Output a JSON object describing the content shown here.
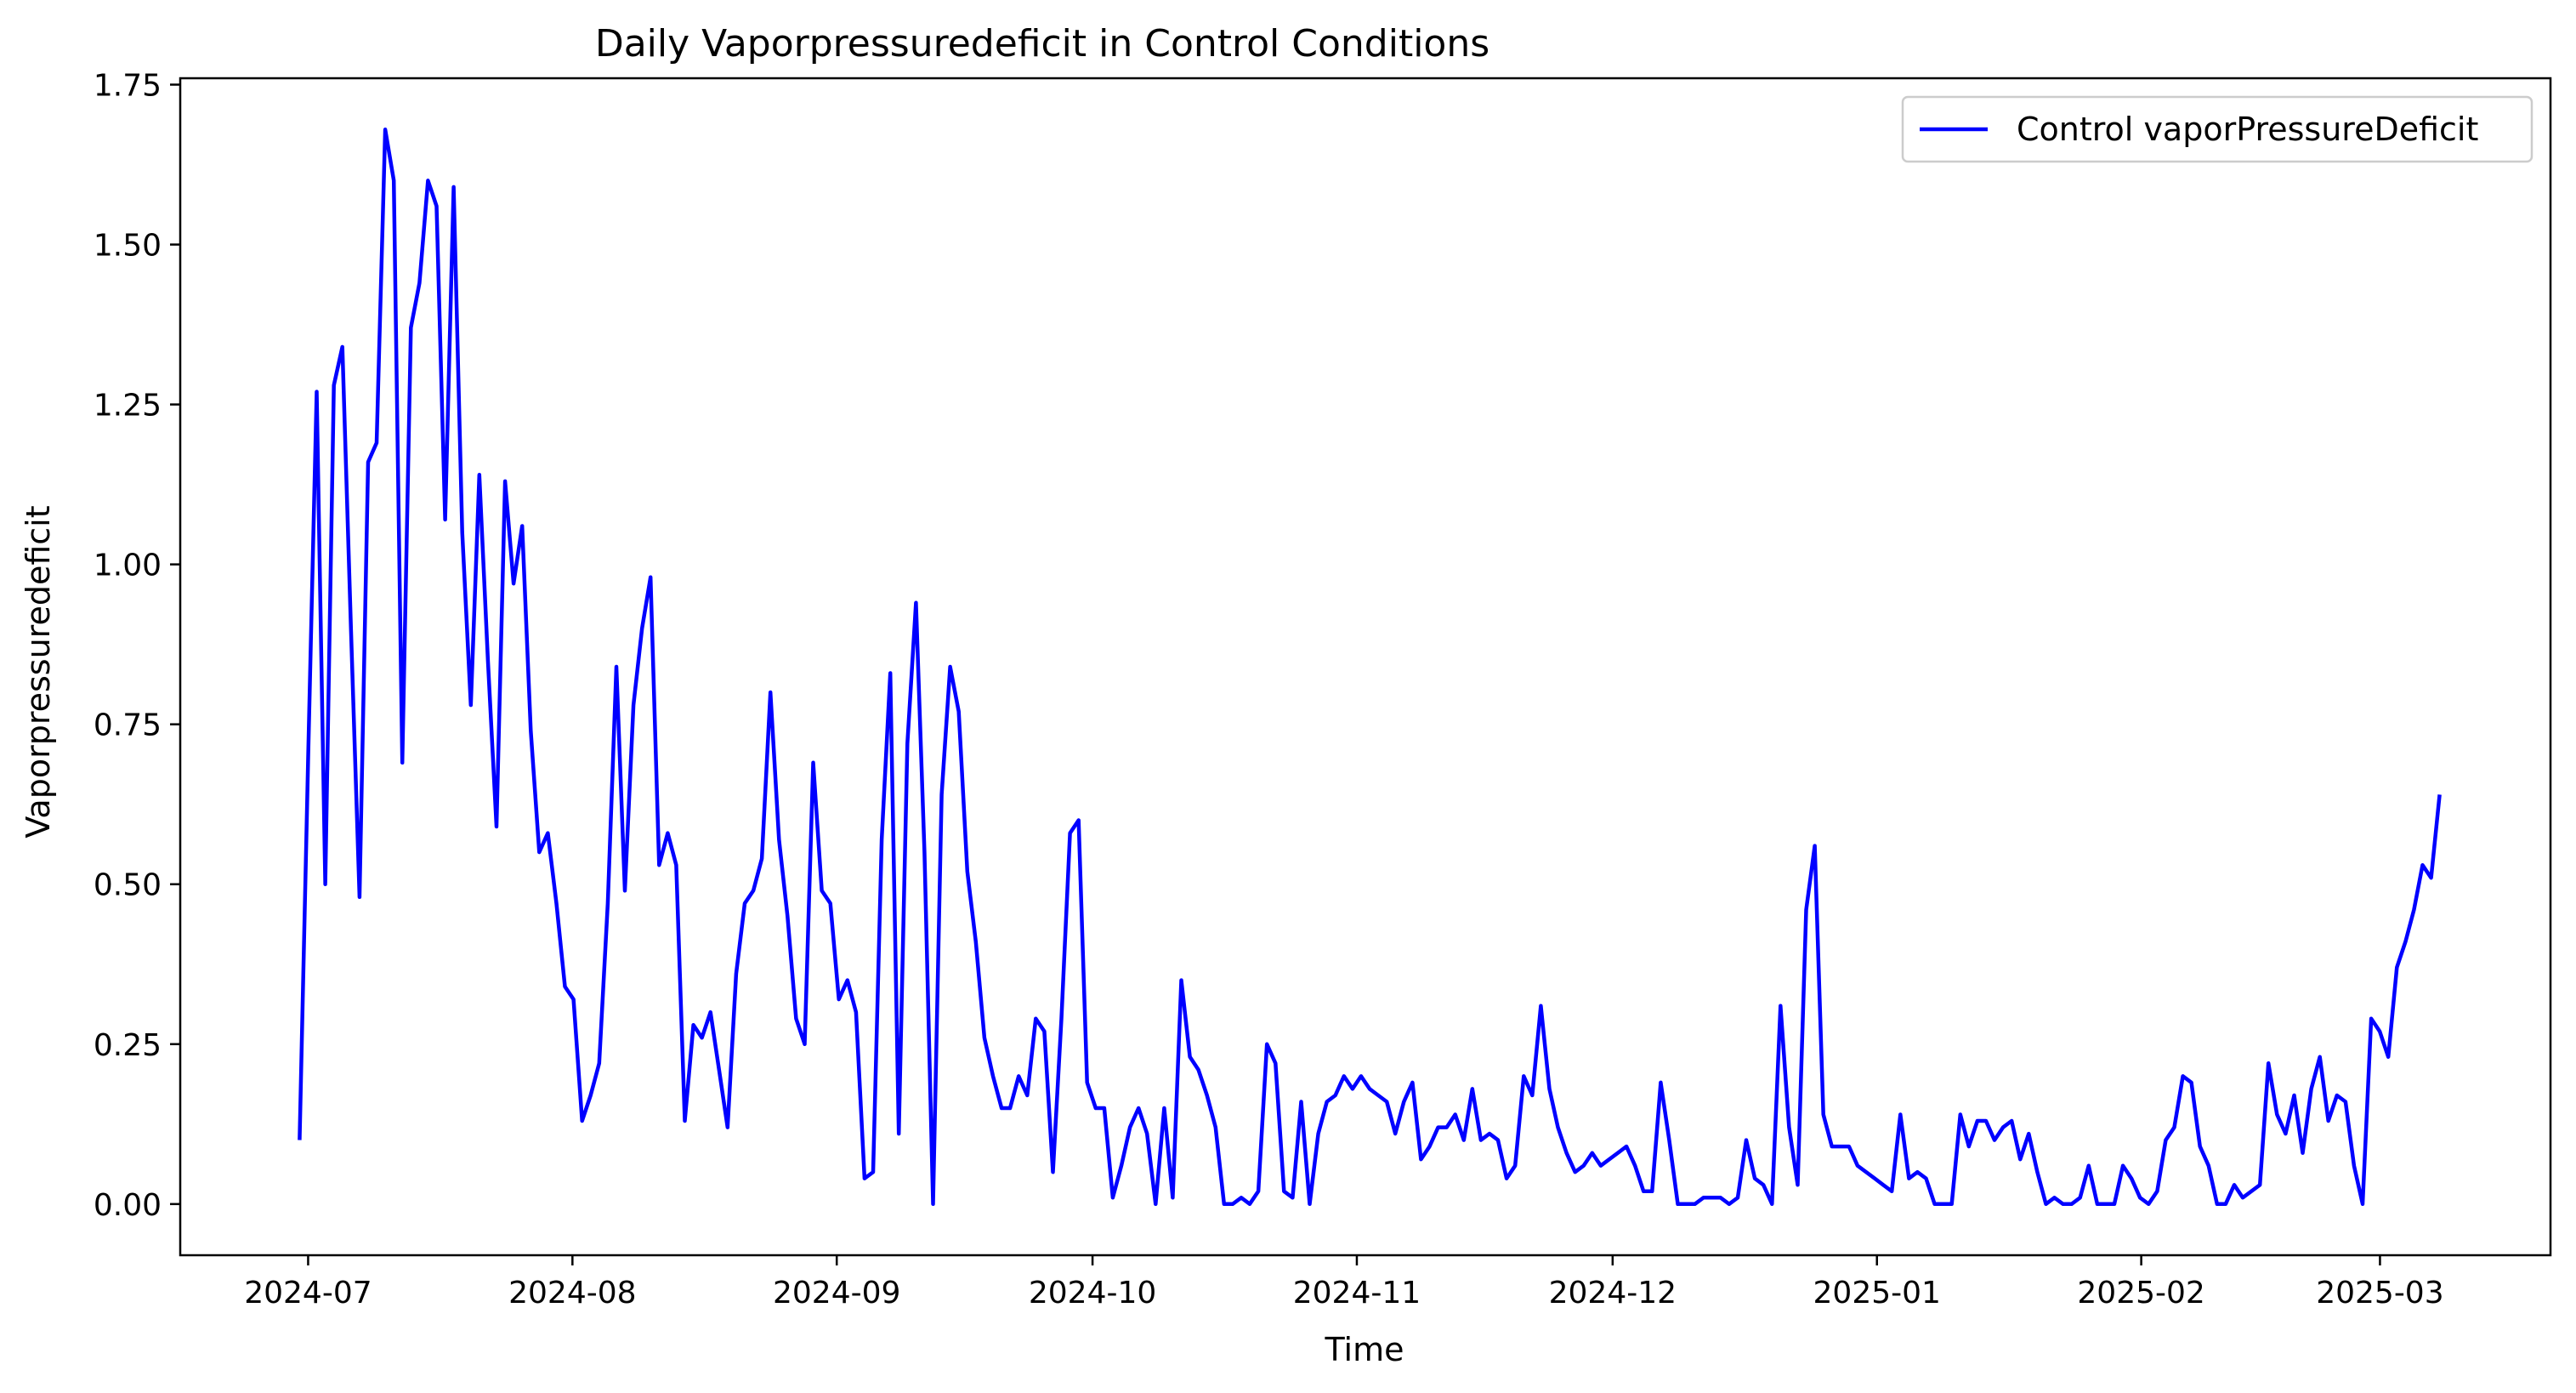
{
  "chart_data": {
    "type": "line",
    "title": "Daily Vaporpressuredeficit in Control Conditions",
    "xlabel": "Time",
    "ylabel": "Vaporpressuredeficit",
    "x_start": "2024-06-30",
    "x_end": "2025-03-08",
    "xlim": [
      "2024-06-16",
      "2025-03-21"
    ],
    "ylim": [
      -0.08,
      1.76
    ],
    "x_ticks": [
      {
        "date": "2024-07-01",
        "label": "2024-07"
      },
      {
        "date": "2024-08-01",
        "label": "2024-08"
      },
      {
        "date": "2024-09-01",
        "label": "2024-09"
      },
      {
        "date": "2024-10-01",
        "label": "2024-10"
      },
      {
        "date": "2024-11-01",
        "label": "2024-11"
      },
      {
        "date": "2024-12-01",
        "label": "2024-12"
      },
      {
        "date": "2025-01-01",
        "label": "2025-01"
      },
      {
        "date": "2025-02-01",
        "label": "2025-02"
      },
      {
        "date": "2025-03-01",
        "label": "2025-03"
      }
    ],
    "y_ticks": [
      {
        "value": 0.0,
        "label": "0.00"
      },
      {
        "value": 0.25,
        "label": "0.25"
      },
      {
        "value": 0.5,
        "label": "0.50"
      },
      {
        "value": 0.75,
        "label": "0.75"
      },
      {
        "value": 1.0,
        "label": "1.00"
      },
      {
        "value": 1.25,
        "label": "1.25"
      },
      {
        "value": 1.5,
        "label": "1.50"
      },
      {
        "value": 1.75,
        "label": "1.75"
      }
    ],
    "grid": false,
    "legend_position": "top-right",
    "series": [
      {
        "name": "Control vaporPressureDeficit",
        "color": "#0000ff",
        "values": [
          0.1,
          0.7,
          1.27,
          0.5,
          1.28,
          1.34,
          0.9,
          0.48,
          1.16,
          1.19,
          1.68,
          1.6,
          0.69,
          1.37,
          1.44,
          1.6,
          1.56,
          1.07,
          1.59,
          1.05,
          0.78,
          1.14,
          0.85,
          0.59,
          1.13,
          0.97,
          1.06,
          0.74,
          0.55,
          0.58,
          0.47,
          0.34,
          0.32,
          0.13,
          0.17,
          0.22,
          0.47,
          0.84,
          0.49,
          0.78,
          0.9,
          0.98,
          0.53,
          0.58,
          0.53,
          0.13,
          0.28,
          0.26,
          0.3,
          0.21,
          0.12,
          0.36,
          0.47,
          0.49,
          0.54,
          0.8,
          0.57,
          0.45,
          0.29,
          0.25,
          0.69,
          0.49,
          0.47,
          0.32,
          0.35,
          0.3,
          0.04,
          0.05,
          0.57,
          0.83,
          0.11,
          0.72,
          0.94,
          0.55,
          0.0,
          0.64,
          0.84,
          0.77,
          0.52,
          0.41,
          0.26,
          0.2,
          0.15,
          0.15,
          0.2,
          0.17,
          0.29,
          0.27,
          0.05,
          0.29,
          0.58,
          0.6,
          0.19,
          0.15,
          0.15,
          0.01,
          0.06,
          0.12,
          0.15,
          0.11,
          0.0,
          0.15,
          0.01,
          0.35,
          0.23,
          0.21,
          0.17,
          0.12,
          0.0,
          0.0,
          0.01,
          0.0,
          0.02,
          0.25,
          0.22,
          0.02,
          0.01,
          0.16,
          0.0,
          0.11,
          0.16,
          0.17,
          0.2,
          0.18,
          0.2,
          0.18,
          0.17,
          0.16,
          0.11,
          0.16,
          0.19,
          0.07,
          0.09,
          0.12,
          0.12,
          0.14,
          0.1,
          0.18,
          0.1,
          0.11,
          0.1,
          0.04,
          0.06,
          0.2,
          0.17,
          0.31,
          0.18,
          0.12,
          0.08,
          0.05,
          0.06,
          0.08,
          0.06,
          0.07,
          0.08,
          0.09,
          0.06,
          0.02,
          0.02,
          0.19,
          0.1,
          0.0,
          0.0,
          0.0,
          0.01,
          0.01,
          0.01,
          0.0,
          0.01,
          0.1,
          0.04,
          0.03,
          0.0,
          0.31,
          0.12,
          0.03,
          0.46,
          0.56,
          0.14,
          0.09,
          0.09,
          0.09,
          0.06,
          0.05,
          0.04,
          0.03,
          0.02,
          0.14,
          0.04,
          0.05,
          0.04,
          0.0,
          0.0,
          0.0,
          0.14,
          0.09,
          0.13,
          0.13,
          0.1,
          0.12,
          0.13,
          0.07,
          0.11,
          0.05,
          0.0,
          0.01,
          0.0,
          0.0,
          0.01,
          0.06,
          0.0,
          0.0,
          0.0,
          0.06,
          0.04,
          0.01,
          0.0,
          0.02,
          0.1,
          0.12,
          0.2,
          0.19,
          0.09,
          0.06,
          0.0,
          0.0,
          0.03,
          0.01,
          0.02,
          0.03,
          0.22,
          0.14,
          0.11,
          0.17,
          0.08,
          0.18,
          0.23,
          0.13,
          0.17,
          0.16,
          0.06,
          0.0,
          0.29,
          0.27,
          0.23,
          0.37,
          0.41,
          0.46,
          0.53,
          0.51,
          0.64
        ]
      }
    ]
  }
}
